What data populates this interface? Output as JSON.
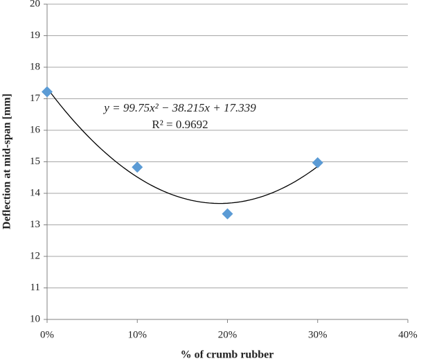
{
  "chart_data": {
    "type": "scatter",
    "x_label": "% of crumb rubber",
    "y_label": "Deflection at mid-span [mm]",
    "x": [
      0,
      0.1,
      0.2,
      0.3
    ],
    "series": [
      {
        "name": "Deflection",
        "color": "#5b9bd5",
        "values": [
          17.22,
          14.83,
          13.35,
          14.97
        ]
      }
    ],
    "xlim": [
      0,
      0.4
    ],
    "xticks": [
      {
        "value": 0,
        "label": "0%"
      },
      {
        "value": 0.1,
        "label": "10%"
      },
      {
        "value": 0.2,
        "label": "20%"
      },
      {
        "value": 0.3,
        "label": "30%"
      },
      {
        "value": 0.4,
        "label": "40%"
      }
    ],
    "ylim": [
      10,
      20
    ],
    "yticks": [
      10,
      11,
      12,
      13,
      14,
      15,
      16,
      17,
      18,
      19,
      20
    ],
    "grid": true,
    "trendline": {
      "coefficients": [
        99.75,
        -38.215,
        17.339
      ],
      "equation": "y = 99.75x² − 38.215x + 17.339",
      "r2": "R² = 0.9692",
      "color": "#000000"
    }
  }
}
